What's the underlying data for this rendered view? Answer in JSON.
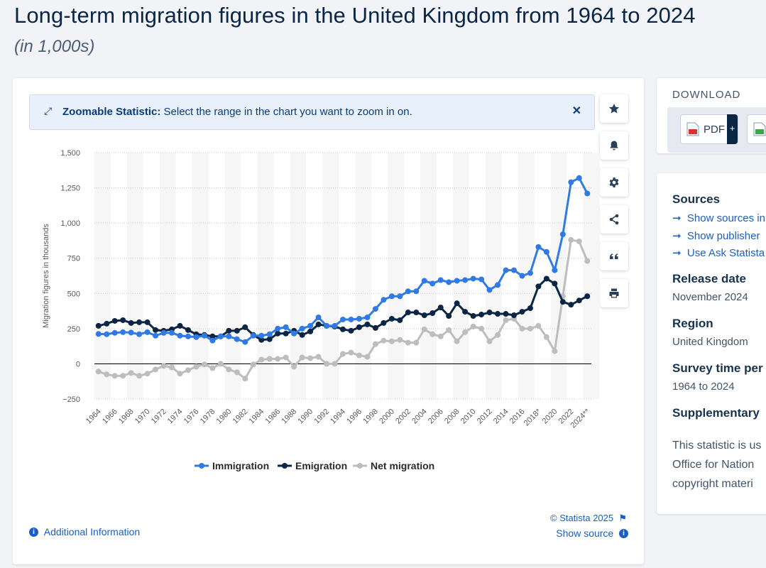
{
  "page": {
    "title": "Long-term migration figures in the United Kingdom from 1964 to 2024",
    "subtitle": "(in 1,000s)"
  },
  "zoom_banner": {
    "label": "Zoomable Statistic:",
    "text": " Select the range in the chart you want to zoom in on.",
    "close": "✕"
  },
  "side_tools": [
    {
      "name": "favorite-button",
      "icon": "star-icon"
    },
    {
      "name": "notification-button",
      "icon": "bell-icon"
    },
    {
      "name": "settings-button",
      "icon": "gear-icon"
    },
    {
      "name": "share-button",
      "icon": "share-icon"
    },
    {
      "name": "cite-button",
      "icon": "quote-icon"
    },
    {
      "name": "print-button",
      "icon": "printer-icon"
    }
  ],
  "footer": {
    "copyright": "© Statista 2025",
    "additional_info": "Additional Information",
    "show_source": "Show source"
  },
  "download": {
    "title": "DOWNLOAD",
    "pdf_label": "PDF",
    "plus": "+"
  },
  "info_panel": {
    "sources_heading": "Sources",
    "links": [
      "Show sources in",
      "Show publisher",
      "Use Ask Statista"
    ],
    "release_heading": "Release date",
    "release_value": "November 2024",
    "region_heading": "Region",
    "region_value": "United Kingdom",
    "survey_heading": "Survey time per",
    "survey_value": "1964 to 2024",
    "supplementary_heading": "Supplementary",
    "body_lines": [
      "This statistic is us",
      "Office for Nation",
      "copyright materi"
    ]
  },
  "colors": {
    "immigration": "#2f7ae5",
    "emigration": "#0b2545",
    "net_migration": "#bdbdbd",
    "accent": "#1a5fc7"
  },
  "chart_data": {
    "type": "line",
    "ylabel": "Migration figures in thousands",
    "ylim": [
      -250,
      1500
    ],
    "yticks": [
      -250,
      0,
      250,
      500,
      750,
      1000,
      1250,
      1500
    ],
    "ytick_labels": [
      "−250",
      "0",
      "250",
      "500",
      "750",
      "1,000",
      "1,250",
      "1,500"
    ],
    "grid": true,
    "legend_position": "bottom",
    "x": [
      1964,
      1965,
      1966,
      1967,
      1968,
      1969,
      1970,
      1971,
      1972,
      1973,
      1974,
      1975,
      1976,
      1977,
      1978,
      1979,
      1980,
      1981,
      1982,
      1983,
      1984,
      1985,
      1986,
      1987,
      1988,
      1989,
      1990,
      1991,
      1992,
      1993,
      1994,
      1995,
      1996,
      1997,
      1998,
      1999,
      2000,
      2001,
      2002,
      2003,
      2004,
      2005,
      2006,
      2007,
      2008,
      2009,
      2010,
      2011,
      2012,
      2013,
      2014,
      2015,
      2016,
      2017,
      2018,
      2019,
      2020,
      2021,
      2022,
      2023,
      2024
    ],
    "xtick_labels": [
      "1964",
      "1966",
      "1968",
      "1970",
      "1972",
      "1974",
      "1976",
      "1978",
      "1980",
      "1982",
      "1984",
      "1986",
      "1988",
      "1990",
      "1992",
      "1994",
      "1996",
      "1998",
      "2000",
      "2002",
      "2004",
      "2006",
      "2008",
      "2010",
      "2012",
      "2014",
      "2016",
      "2018*",
      "2020",
      "2022",
      "2024**"
    ],
    "series": [
      {
        "name": "Immigration",
        "values": [
          212,
          210,
          220,
          225,
          222,
          210,
          225,
          200,
          220,
          220,
          200,
          195,
          190,
          200,
          165,
          195,
          195,
          175,
          155,
          200,
          200,
          210,
          250,
          260,
          215,
          250,
          270,
          330,
          270,
          270,
          315,
          315,
          320,
          330,
          390,
          455,
          480,
          480,
          515,
          515,
          590,
          570,
          595,
          580,
          590,
          595,
          605,
          600,
          525,
          560,
          665,
          665,
          625,
          645,
          830,
          795,
          665,
          920,
          1290,
          1320,
          1210
        ]
      },
      {
        "name": "Emigration",
        "values": [
          270,
          285,
          305,
          310,
          290,
          295,
          295,
          240,
          235,
          245,
          270,
          240,
          210,
          205,
          195,
          195,
          235,
          235,
          260,
          205,
          170,
          175,
          215,
          215,
          235,
          205,
          230,
          280,
          270,
          265,
          245,
          235,
          260,
          280,
          255,
          290,
          320,
          310,
          365,
          365,
          345,
          360,
          400,
          340,
          430,
          370,
          340,
          350,
          365,
          355,
          355,
          345,
          370,
          395,
          550,
          605,
          570,
          440,
          420,
          450,
          480
        ]
      },
      {
        "name": "Net migration",
        "values": [
          -55,
          -75,
          -85,
          -85,
          -65,
          -85,
          -70,
          -40,
          -15,
          -25,
          -70,
          -45,
          -20,
          -5,
          -30,
          0,
          -40,
          -60,
          -105,
          -5,
          30,
          35,
          35,
          45,
          -20,
          45,
          40,
          50,
          0,
          0,
          70,
          80,
          60,
          50,
          140,
          165,
          160,
          170,
          150,
          150,
          245,
          210,
          195,
          240,
          160,
          225,
          265,
          250,
          160,
          205,
          310,
          320,
          250,
          250,
          270,
          190,
          90,
          480,
          880,
          870,
          730
        ]
      }
    ]
  }
}
